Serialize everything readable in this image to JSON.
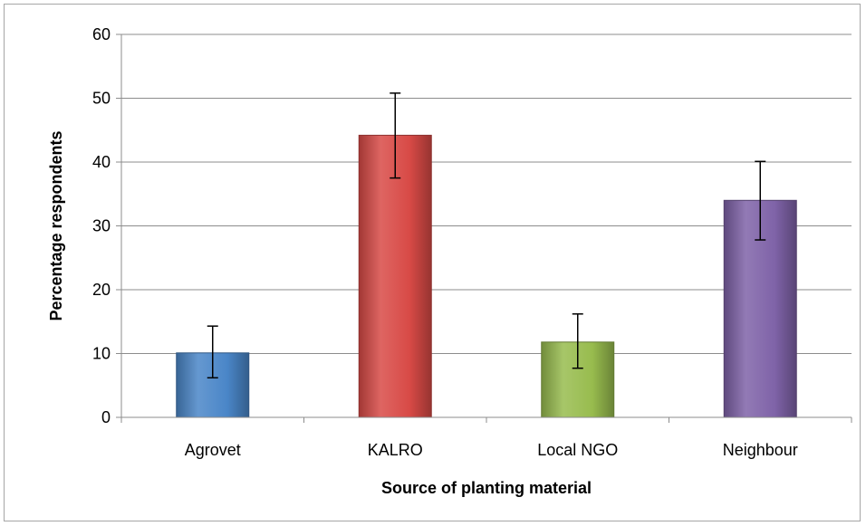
{
  "chart_data": {
    "type": "bar",
    "title": "",
    "xlabel": "Source of planting material",
    "ylabel": "Percentage respondents",
    "categories": [
      "Agrovet",
      "KALRO",
      "Local NGO",
      "Neighbour"
    ],
    "values": [
      10.1,
      44.2,
      11.8,
      34.0
    ],
    "error_low": [
      6.2,
      37.5,
      7.7,
      27.8
    ],
    "error_high": [
      14.3,
      50.8,
      16.2,
      40.1
    ],
    "ylim": [
      0,
      60
    ],
    "yticks": [
      0,
      10,
      20,
      30,
      40,
      50,
      60
    ],
    "grid": true,
    "legend": "none",
    "colors": [
      "#4a86c8",
      "#d84a46",
      "#98bc4e",
      "#7f63a8"
    ]
  }
}
